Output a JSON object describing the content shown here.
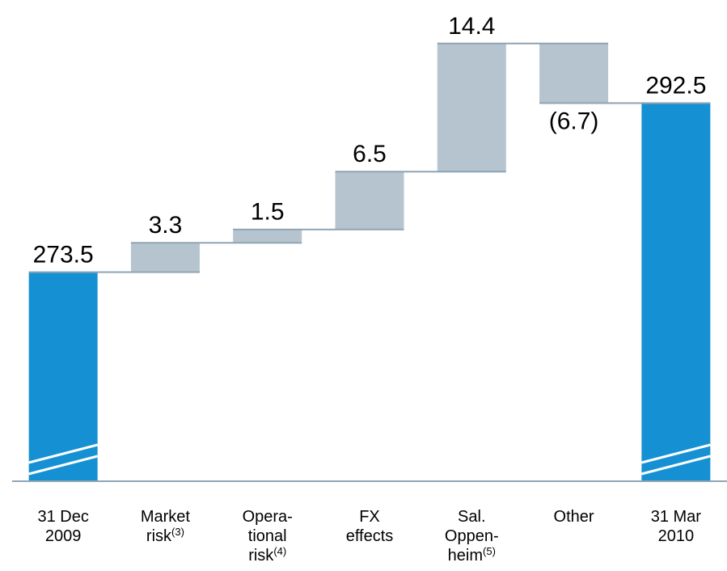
{
  "chart_data": {
    "type": "waterfall",
    "categories": [
      "31 Dec\n2009",
      "Market\nrisk(3)",
      "Opera-\ntional\nrisk(4)",
      "FX\neffects",
      "Sal.\nOppen-\nheim(5)",
      "Other",
      "31 Mar\n2010"
    ],
    "values": [
      273.5,
      3.3,
      1.5,
      6.5,
      14.4,
      -6.7,
      292.5
    ],
    "value_labels": [
      "273.5",
      "3.3",
      "1.5",
      "6.5",
      "14.4",
      "(6.7)",
      "292.5"
    ],
    "is_total": [
      true,
      false,
      false,
      false,
      false,
      false,
      true
    ],
    "total_color": "#1591d3",
    "change_color": "#b5c4ce",
    "connector_color": "#8fa3b3",
    "ylim": [
      250,
      300
    ]
  }
}
